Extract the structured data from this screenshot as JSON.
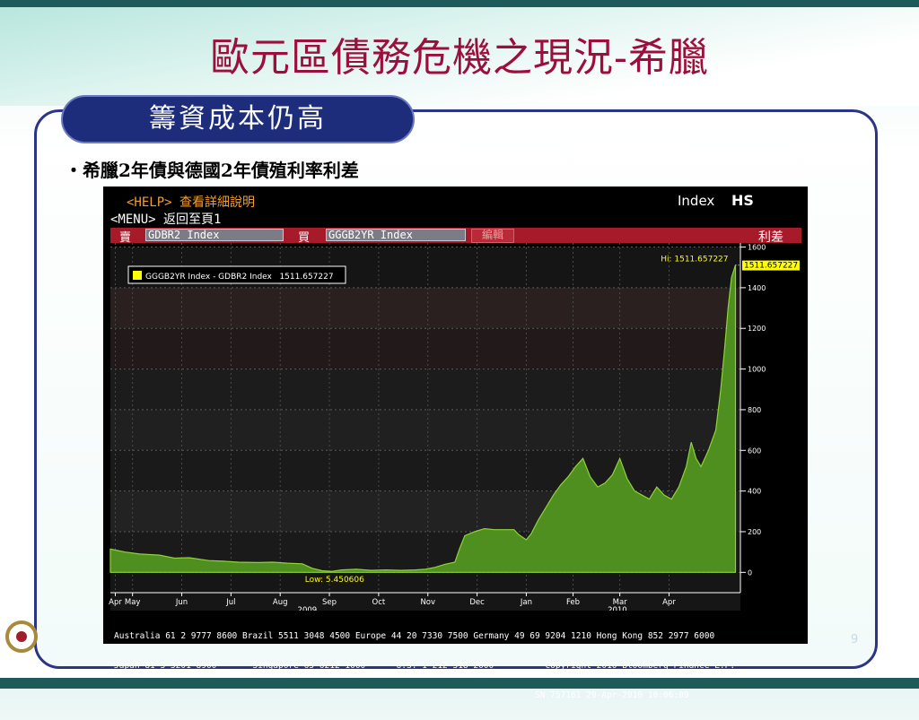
{
  "slide": {
    "title": "歐元區債務危機之現況-希臘",
    "section": "籌資成本仍高",
    "bullet": "‧希臘2年債與德國2年債殖利率利差",
    "page_number": "9"
  },
  "terminal": {
    "help": "<HELP> 查看詳細說明",
    "menu": "<MENU> 返回至頁1",
    "index_label": "Index",
    "hs_label": "HS",
    "sell_label": "賣",
    "sell_field": "GDBR2 Index",
    "buy_label": "買",
    "buy_field": "GGGB2YR Index",
    "edit_label": "編輯",
    "spread_label": "利差",
    "footer_lines": [
      "Australia 61 2 9777 8600 Brazil 5511 3048 4500 Europe 44 20 7330 7500 Germany 49 69 9204 1210 Hong Kong 852 2977 6000",
      "Japan 81 3 3201 8900       Singapore 65 6212 1000      U.S. 1 212 318 2000          Copyright 2010 Bloomberg Finance L.P.",
      "                                                                                  SN 757161 29-Apr-2010 10:06:09"
    ]
  },
  "colors": {
    "title": "#9c0f3c",
    "area_fill": "#4f8f1f",
    "area_line": "#8fd23a",
    "legend_swatch": "#ffff00",
    "terminal_orange": "#f0a030",
    "hi_label": "#ffff00"
  },
  "chart_data": {
    "type": "area",
    "legend": "GGGB2YR Index - GDBR2 Index   1511.657227",
    "last_value_label": "1511.657227",
    "hi_label": "Hi: 1511.657227",
    "low_label": "Low: 5.450606",
    "ylim": [
      -100,
      1620
    ],
    "yticks": [
      0,
      200,
      400,
      600,
      800,
      1000,
      1200,
      1400,
      1600
    ],
    "xlim": [
      0,
      12.8
    ],
    "month_ticks": [
      {
        "label": "Apr",
        "x": 0.1
      },
      {
        "label": "May",
        "x": 0.45
      },
      {
        "label": "Jun",
        "x": 1.45
      },
      {
        "label": "Jul",
        "x": 2.45
      },
      {
        "label": "Aug",
        "x": 3.45
      },
      {
        "label": "Sep",
        "x": 4.45
      },
      {
        "label": "Oct",
        "x": 5.45
      },
      {
        "label": "Nov",
        "x": 6.45
      },
      {
        "label": "Dec",
        "x": 7.45
      },
      {
        "label": "Jan",
        "x": 8.45
      },
      {
        "label": "Feb",
        "x": 9.4
      },
      {
        "label": "Mar",
        "x": 10.35
      },
      {
        "label": "Apr",
        "x": 11.35
      }
    ],
    "year_labels": [
      {
        "label": "2009",
        "x": 4.0
      },
      {
        "label": "2010",
        "x": 10.3
      }
    ],
    "series": [
      {
        "points": [
          [
            0.0,
            115
          ],
          [
            0.3,
            100
          ],
          [
            0.6,
            90
          ],
          [
            1.0,
            85
          ],
          [
            1.3,
            70
          ],
          [
            1.6,
            72
          ],
          [
            2.0,
            58
          ],
          [
            2.3,
            55
          ],
          [
            2.6,
            50
          ],
          [
            3.0,
            48
          ],
          [
            3.3,
            50
          ],
          [
            3.6,
            45
          ],
          [
            3.9,
            42
          ],
          [
            4.1,
            20
          ],
          [
            4.3,
            8
          ],
          [
            4.5,
            5
          ],
          [
            4.7,
            12
          ],
          [
            5.0,
            15
          ],
          [
            5.3,
            10
          ],
          [
            5.6,
            12
          ],
          [
            5.9,
            10
          ],
          [
            6.2,
            12
          ],
          [
            6.4,
            15
          ],
          [
            6.6,
            25
          ],
          [
            6.8,
            40
          ],
          [
            7.0,
            50
          ],
          [
            7.1,
            120
          ],
          [
            7.2,
            180
          ],
          [
            7.4,
            200
          ],
          [
            7.6,
            215
          ],
          [
            7.8,
            210
          ],
          [
            8.0,
            210
          ],
          [
            8.2,
            210
          ],
          [
            8.3,
            185
          ],
          [
            8.45,
            160
          ],
          [
            8.55,
            190
          ],
          [
            8.7,
            260
          ],
          [
            8.85,
            320
          ],
          [
            9.0,
            380
          ],
          [
            9.15,
            430
          ],
          [
            9.3,
            470
          ],
          [
            9.45,
            520
          ],
          [
            9.6,
            560
          ],
          [
            9.75,
            470
          ],
          [
            9.9,
            420
          ],
          [
            10.05,
            440
          ],
          [
            10.2,
            480
          ],
          [
            10.35,
            560
          ],
          [
            10.5,
            460
          ],
          [
            10.65,
            400
          ],
          [
            10.8,
            380
          ],
          [
            10.95,
            360
          ],
          [
            11.1,
            420
          ],
          [
            11.25,
            380
          ],
          [
            11.4,
            360
          ],
          [
            11.55,
            420
          ],
          [
            11.7,
            520
          ],
          [
            11.8,
            640
          ],
          [
            11.9,
            560
          ],
          [
            12.0,
            520
          ],
          [
            12.15,
            600
          ],
          [
            12.3,
            700
          ],
          [
            12.4,
            900
          ],
          [
            12.48,
            1100
          ],
          [
            12.55,
            1300
          ],
          [
            12.62,
            1450
          ],
          [
            12.7,
            1511.657227
          ]
        ]
      }
    ]
  }
}
